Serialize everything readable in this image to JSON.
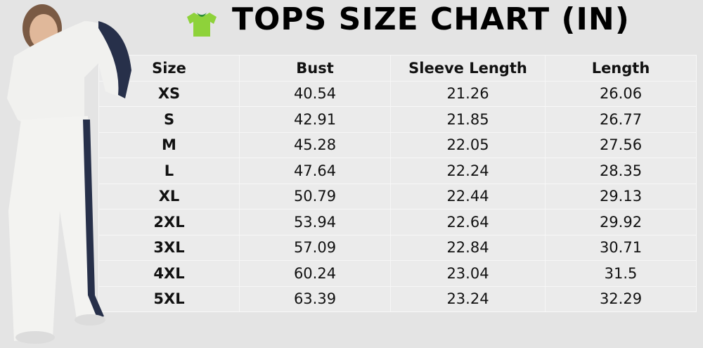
{
  "header": {
    "title": "TOPS SIZE CHART (IN)"
  },
  "table": {
    "columns": [
      "Size",
      "Bust",
      "Sleeve Length",
      "Length"
    ],
    "rows": [
      [
        "XS",
        "40.54",
        "21.26",
        "26.06"
      ],
      [
        "S",
        "42.91",
        "21.85",
        "26.77"
      ],
      [
        "M",
        "45.28",
        "22.05",
        "27.56"
      ],
      [
        "L",
        "47.64",
        "22.24",
        "28.35"
      ],
      [
        "XL",
        "50.79",
        "22.44",
        "29.13"
      ],
      [
        "2XL",
        "53.94",
        "22.64",
        "29.92"
      ],
      [
        "3XL",
        "57.09",
        "22.84",
        "30.71"
      ],
      [
        "4XL",
        "60.24",
        "23.04",
        "31.5"
      ],
      [
        "5XL",
        "63.39",
        "23.24",
        "32.29"
      ]
    ]
  }
}
